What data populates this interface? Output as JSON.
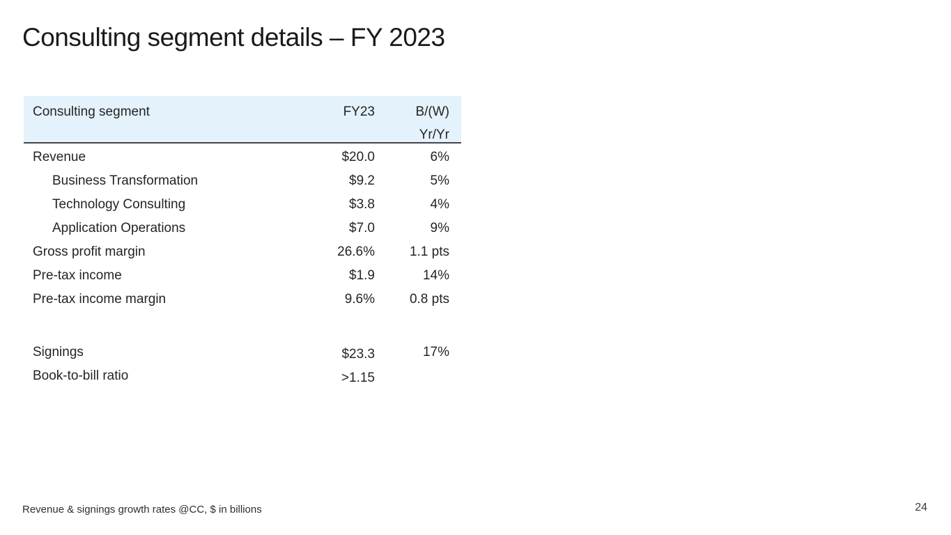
{
  "slide": {
    "title": "Consulting segment details – FY 2023",
    "footnote": "Revenue & signings growth rates @CC, $ in billions",
    "page_number": "24"
  },
  "colors": {
    "header_bg": "#e3f2fb",
    "header_rule": "#444444",
    "text": "#242424"
  },
  "table": {
    "header": {
      "segment": "Consulting segment",
      "fy23": "FY23",
      "bw_line1": "B/(W)",
      "bw_line2": "Yr/Yr"
    },
    "rows": [
      {
        "label": "Revenue",
        "fy23": "$20.0",
        "bw": "6%"
      },
      {
        "label": "Business Transformation",
        "fy23": "$9.2",
        "bw": "5%"
      },
      {
        "label": "Technology Consulting",
        "fy23": "$3.8",
        "bw": "4%"
      },
      {
        "label": "Application Operations",
        "fy23": "$7.0",
        "bw": "9%"
      },
      {
        "label": "Gross profit margin",
        "fy23": "26.6%",
        "bw": "1.1 pts"
      },
      {
        "label": "Pre-tax income",
        "fy23": "$1.9",
        "bw": "14%"
      },
      {
        "label": "Pre-tax income margin",
        "fy23": "9.6%",
        "bw": "0.8 pts"
      },
      {
        "label": "Signings",
        "fy23": "$23.3",
        "bw": "17%"
      },
      {
        "label": "Book-to-bill ratio",
        "fy23": ">1.15",
        "bw": ""
      }
    ]
  }
}
